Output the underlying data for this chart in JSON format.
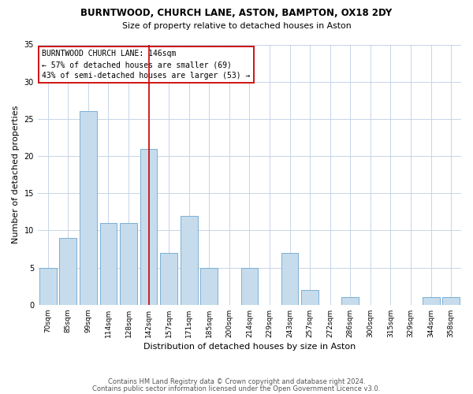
{
  "title1": "BURNTWOOD, CHURCH LANE, ASTON, BAMPTON, OX18 2DY",
  "title2": "Size of property relative to detached houses in Aston",
  "xlabel": "Distribution of detached houses by size in Aston",
  "ylabel": "Number of detached properties",
  "bar_labels": [
    "70sqm",
    "85sqm",
    "99sqm",
    "114sqm",
    "128sqm",
    "142sqm",
    "157sqm",
    "171sqm",
    "185sqm",
    "200sqm",
    "214sqm",
    "229sqm",
    "243sqm",
    "257sqm",
    "272sqm",
    "286sqm",
    "300sqm",
    "315sqm",
    "329sqm",
    "344sqm",
    "358sqm"
  ],
  "bar_values": [
    5,
    9,
    26,
    11,
    11,
    21,
    7,
    12,
    5,
    0,
    5,
    0,
    7,
    2,
    0,
    1,
    0,
    0,
    0,
    1,
    1
  ],
  "bar_color": "#c6dcec",
  "bar_edgecolor": "#7bafd4",
  "annotation_title": "BURNTWOOD CHURCH LANE: 146sqm",
  "annotation_line1": "← 57% of detached houses are smaller (69)",
  "annotation_line2": "43% of semi-detached houses are larger (53) →",
  "ylim": [
    0,
    35
  ],
  "yticks": [
    0,
    5,
    10,
    15,
    20,
    25,
    30,
    35
  ],
  "footer1": "Contains HM Land Registry data © Crown copyright and database right 2024.",
  "footer2": "Contains public sector information licensed under the Open Government Licence v3.0.",
  "ref_line_color": "#cc0000",
  "annotation_box_edgecolor": "#cc0000",
  "background_color": "#ffffff",
  "grid_color": "#c8d4e8"
}
